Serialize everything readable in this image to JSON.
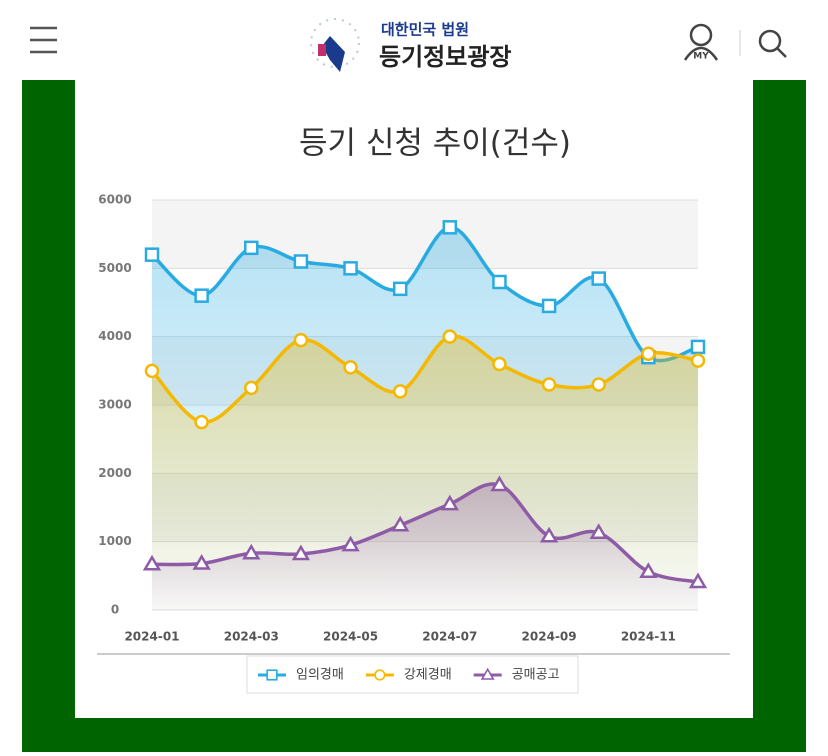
{
  "header": {
    "org": "대한민국 법원",
    "site": "등기정보광장",
    "my": "MY"
  },
  "chart_data": {
    "type": "line",
    "title": "등기 신청 추이(건수)",
    "categories": [
      "2024-01",
      null,
      "2024-03",
      null,
      "2024-05",
      null,
      "2024-07",
      null,
      "2024-09",
      null,
      "2024-11",
      null
    ],
    "series": [
      {
        "name": "임의경매",
        "color": "#29abe2",
        "marker": "square",
        "values": [
          5200,
          4600,
          5300,
          5100,
          5000,
          4700,
          5600,
          4800,
          4450,
          4850,
          3700,
          3850
        ]
      },
      {
        "name": "강제경매",
        "color": "#f5b800",
        "marker": "circle",
        "values": [
          3500,
          2750,
          3250,
          3950,
          3550,
          3200,
          4000,
          3600,
          3300,
          3300,
          3750,
          3650
        ]
      },
      {
        "name": "공매공고",
        "color": "#8e5ca6",
        "marker": "triangle",
        "values": [
          670,
          680,
          830,
          820,
          950,
          1240,
          1550,
          1830,
          1080,
          1130,
          560,
          410
        ]
      }
    ],
    "ylim": [
      0,
      6000
    ],
    "yticks": [
      0,
      1000,
      2000,
      3000,
      4000,
      5000,
      6000
    ],
    "grid": true,
    "smooth": true
  }
}
